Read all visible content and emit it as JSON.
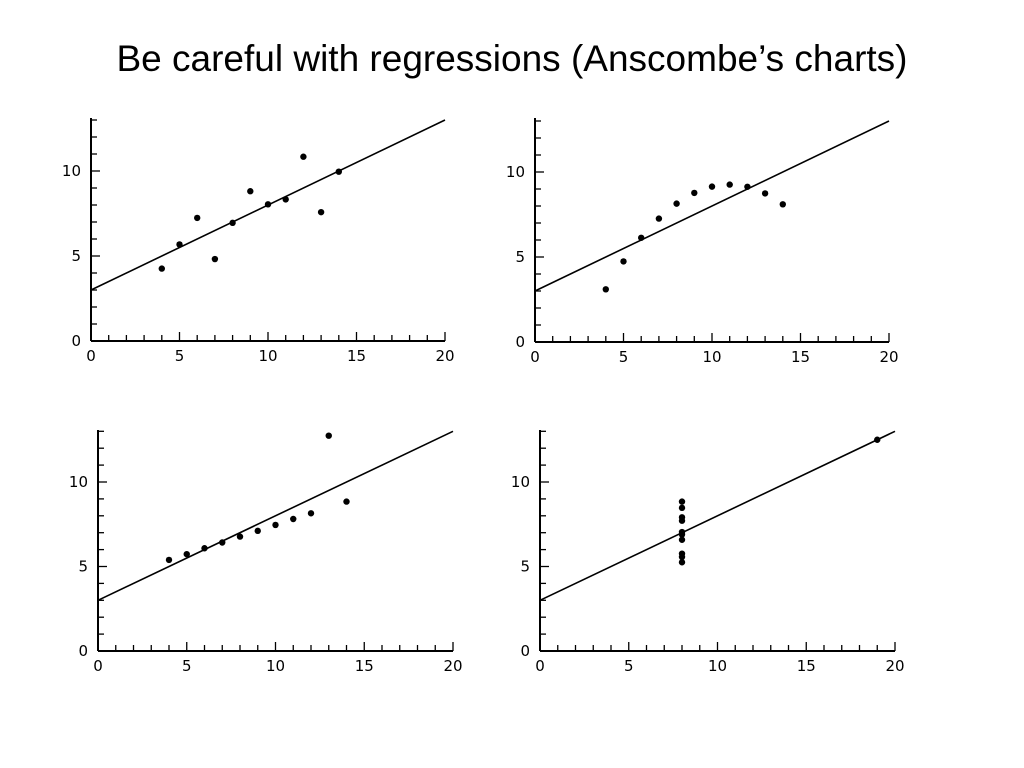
{
  "slide": {
    "title": "Be careful with regressions (Anscombe’s charts)"
  },
  "style": {
    "ink_color": "#000000",
    "background_color": "#ffffff"
  },
  "chart_data": [
    {
      "type": "scatter",
      "title": "",
      "xlabel": "",
      "ylabel": "",
      "xlim": [
        0,
        20
      ],
      "ylim": [
        0,
        13
      ],
      "x_ticks": [
        0,
        5,
        10,
        15,
        20
      ],
      "y_ticks": [
        0,
        5,
        10
      ],
      "x_tick_labels": [
        "0",
        "5",
        "10",
        "15",
        "20"
      ],
      "y_tick_labels": [
        "0",
        "5",
        "10"
      ],
      "grid": false,
      "regression_line": {
        "intercept": 3.0,
        "slope": 0.5
      },
      "points": [
        {
          "x": 10,
          "y": 8.04
        },
        {
          "x": 8,
          "y": 6.95
        },
        {
          "x": 13,
          "y": 7.58
        },
        {
          "x": 9,
          "y": 8.81
        },
        {
          "x": 11,
          "y": 8.33
        },
        {
          "x": 14,
          "y": 9.96
        },
        {
          "x": 6,
          "y": 7.24
        },
        {
          "x": 4,
          "y": 4.26
        },
        {
          "x": 12,
          "y": 10.84
        },
        {
          "x": 7,
          "y": 4.82
        },
        {
          "x": 5,
          "y": 5.68
        }
      ]
    },
    {
      "type": "scatter",
      "title": "",
      "xlabel": "",
      "ylabel": "",
      "xlim": [
        0,
        20
      ],
      "ylim": [
        0,
        13
      ],
      "x_ticks": [
        0,
        5,
        10,
        15,
        20
      ],
      "y_ticks": [
        0,
        5,
        10
      ],
      "x_tick_labels": [
        "0",
        "5",
        "10",
        "15",
        "20"
      ],
      "y_tick_labels": [
        "0",
        "5",
        "10"
      ],
      "grid": false,
      "regression_line": {
        "intercept": 3.0,
        "slope": 0.5
      },
      "points": [
        {
          "x": 10,
          "y": 9.14
        },
        {
          "x": 8,
          "y": 8.14
        },
        {
          "x": 13,
          "y": 8.74
        },
        {
          "x": 9,
          "y": 8.77
        },
        {
          "x": 11,
          "y": 9.26
        },
        {
          "x": 14,
          "y": 8.1
        },
        {
          "x": 6,
          "y": 6.13
        },
        {
          "x": 4,
          "y": 3.1
        },
        {
          "x": 12,
          "y": 9.13
        },
        {
          "x": 7,
          "y": 7.26
        },
        {
          "x": 5,
          "y": 4.74
        }
      ]
    },
    {
      "type": "scatter",
      "title": "",
      "xlabel": "",
      "ylabel": "",
      "xlim": [
        0,
        20
      ],
      "ylim": [
        0,
        13
      ],
      "x_ticks": [
        0,
        5,
        10,
        15,
        20
      ],
      "y_ticks": [
        0,
        5,
        10
      ],
      "x_tick_labels": [
        "0",
        "5",
        "10",
        "15",
        "20"
      ],
      "y_tick_labels": [
        "0",
        "5",
        "10"
      ],
      "grid": false,
      "regression_line": {
        "intercept": 3.0,
        "slope": 0.5
      },
      "points": [
        {
          "x": 10,
          "y": 7.46
        },
        {
          "x": 8,
          "y": 6.77
        },
        {
          "x": 13,
          "y": 12.74
        },
        {
          "x": 9,
          "y": 7.11
        },
        {
          "x": 11,
          "y": 7.81
        },
        {
          "x": 14,
          "y": 8.84
        },
        {
          "x": 6,
          "y": 6.08
        },
        {
          "x": 4,
          "y": 5.39
        },
        {
          "x": 12,
          "y": 8.15
        },
        {
          "x": 7,
          "y": 6.42
        },
        {
          "x": 5,
          "y": 5.73
        }
      ]
    },
    {
      "type": "scatter",
      "title": "",
      "xlabel": "",
      "ylabel": "",
      "xlim": [
        0,
        20
      ],
      "ylim": [
        0,
        13
      ],
      "x_ticks": [
        0,
        5,
        10,
        15,
        20
      ],
      "y_ticks": [
        0,
        5,
        10
      ],
      "x_tick_labels": [
        "0",
        "5",
        "10",
        "15",
        "20"
      ],
      "y_tick_labels": [
        "0",
        "5",
        "10"
      ],
      "grid": false,
      "regression_line": {
        "intercept": 3.0,
        "slope": 0.5
      },
      "points": [
        {
          "x": 8,
          "y": 6.58
        },
        {
          "x": 8,
          "y": 5.76
        },
        {
          "x": 8,
          "y": 7.71
        },
        {
          "x": 8,
          "y": 8.84
        },
        {
          "x": 8,
          "y": 8.47
        },
        {
          "x": 8,
          "y": 7.04
        },
        {
          "x": 8,
          "y": 5.25
        },
        {
          "x": 19,
          "y": 12.5
        },
        {
          "x": 8,
          "y": 5.56
        },
        {
          "x": 8,
          "y": 7.91
        },
        {
          "x": 8,
          "y": 6.89
        }
      ]
    }
  ]
}
